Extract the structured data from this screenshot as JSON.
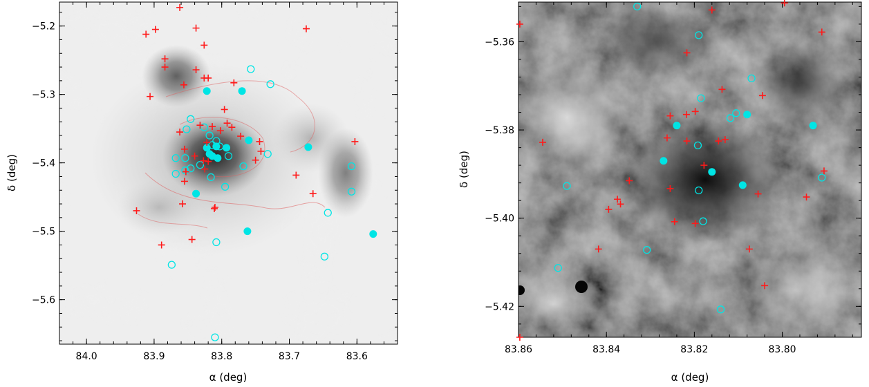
{
  "chart_data": [
    {
      "type": "scatter",
      "panel": "left",
      "background": "inverted grayscale image",
      "xlabel": "α (deg)",
      "ylabel": "δ (deg)",
      "xlim": [
        84.04,
        83.54
      ],
      "ylim": [
        -5.665,
        -5.165
      ],
      "x_ticks": [
        84.0,
        83.9,
        83.8,
        83.7,
        83.6
      ],
      "x_tick_labels": [
        "84.0",
        "83.9",
        "83.8",
        "83.7",
        "83.6"
      ],
      "y_ticks": [
        -5.2,
        -5.3,
        -5.4,
        -5.5,
        -5.6
      ],
      "y_tick_labels": [
        "−5.2",
        "−5.3",
        "−5.4",
        "−5.5",
        "−5.6"
      ],
      "colors": {
        "filled": "#00e5e5",
        "open": "#00e5e5",
        "plus": "#ff1a1a",
        "contour": "#e06060"
      },
      "series": [
        {
          "marker": "filled-circle",
          "points": [
            [
              83.822,
              -5.295
            ],
            [
              83.77,
              -5.295
            ],
            [
              83.822,
              -5.378
            ],
            [
              83.808,
              -5.376
            ],
            [
              83.793,
              -5.378
            ],
            [
              83.76,
              -5.367
            ],
            [
              83.814,
              -5.39
            ],
            [
              83.806,
              -5.393
            ],
            [
              83.818,
              -5.387
            ],
            [
              83.672,
              -5.377
            ],
            [
              83.838,
              -5.445
            ],
            [
              83.762,
              -5.5
            ],
            [
              83.576,
              -5.504
            ]
          ]
        },
        {
          "marker": "open-circle",
          "points": [
            [
              83.757,
              -5.263
            ],
            [
              83.728,
              -5.285
            ],
            [
              83.846,
              -5.336
            ],
            [
              83.852,
              -5.351
            ],
            [
              83.826,
              -5.348
            ],
            [
              83.818,
              -5.36
            ],
            [
              83.808,
              -5.368
            ],
            [
              83.814,
              -5.374
            ],
            [
              83.803,
              -5.376
            ],
            [
              83.79,
              -5.39
            ],
            [
              83.868,
              -5.393
            ],
            [
              83.854,
              -5.393
            ],
            [
              83.846,
              -5.408
            ],
            [
              83.832,
              -5.403
            ],
            [
              83.868,
              -5.416
            ],
            [
              83.854,
              -5.411
            ],
            [
              83.816,
              -5.421
            ],
            [
              83.795,
              -5.435
            ],
            [
              83.768,
              -5.405
            ],
            [
              83.732,
              -5.387
            ],
            [
              83.608,
              -5.405
            ],
            [
              83.608,
              -5.442
            ],
            [
              83.643,
              -5.473
            ],
            [
              83.808,
              -5.516
            ],
            [
              83.648,
              -5.537
            ],
            [
              83.874,
              -5.549
            ],
            [
              83.81,
              -5.655
            ]
          ]
        },
        {
          "marker": "plus",
          "points": [
            [
              83.862,
              -5.173
            ],
            [
              83.912,
              -5.212
            ],
            [
              83.898,
              -5.205
            ],
            [
              83.838,
              -5.203
            ],
            [
              83.675,
              -5.204
            ],
            [
              83.826,
              -5.228
            ],
            [
              83.884,
              -5.248
            ],
            [
              83.884,
              -5.26
            ],
            [
              83.838,
              -5.264
            ],
            [
              83.82,
              -5.276
            ],
            [
              83.826,
              -5.276
            ],
            [
              83.856,
              -5.286
            ],
            [
              83.782,
              -5.283
            ],
            [
              83.906,
              -5.303
            ],
            [
              83.796,
              -5.322
            ],
            [
              83.862,
              -5.355
            ],
            [
              83.832,
              -5.345
            ],
            [
              83.814,
              -5.347
            ],
            [
              83.792,
              -5.342
            ],
            [
              83.785,
              -5.348
            ],
            [
              83.822,
              -5.37
            ],
            [
              83.772,
              -5.361
            ],
            [
              83.744,
              -5.369
            ],
            [
              83.802,
              -5.353
            ],
            [
              83.855,
              -5.38
            ],
            [
              83.742,
              -5.383
            ],
            [
              83.827,
              -5.397
            ],
            [
              83.82,
              -5.398
            ],
            [
              83.84,
              -5.39
            ],
            [
              83.75,
              -5.396
            ],
            [
              83.853,
              -5.413
            ],
            [
              83.825,
              -5.409
            ],
            [
              83.855,
              -5.427
            ],
            [
              83.69,
              -5.418
            ],
            [
              83.665,
              -5.445
            ],
            [
              83.858,
              -5.46
            ],
            [
              83.81,
              -5.465
            ],
            [
              83.811,
              -5.467
            ],
            [
              83.926,
              -5.47
            ],
            [
              83.603,
              -5.369
            ],
            [
              83.889,
              -5.52
            ],
            [
              83.844,
              -5.512
            ]
          ]
        }
      ]
    },
    {
      "type": "scatter",
      "panel": "right",
      "background": "grayscale image",
      "xlabel": "α (deg)",
      "ylabel": "δ (deg)",
      "xlim": [
        83.86,
        83.782
      ],
      "ylim": [
        -5.427,
        -5.351
      ],
      "x_ticks": [
        83.86,
        83.84,
        83.82,
        83.8
      ],
      "x_tick_labels": [
        "83.86",
        "83.84",
        "83.82",
        "83.80"
      ],
      "y_ticks": [
        -5.36,
        -5.38,
        -5.4,
        -5.42
      ],
      "y_tick_labels": [
        "−5.36",
        "−5.38",
        "−5.40",
        "−5.42"
      ],
      "colors": {
        "filled": "#00e5e5",
        "open": "#00e5e5",
        "plus": "#ff1a1a"
      },
      "series": [
        {
          "marker": "filled-circle",
          "points": [
            [
              83.824,
              -5.379
            ],
            [
              83.827,
              -5.387
            ],
            [
              83.816,
              -5.3895
            ],
            [
              83.809,
              -5.3925
            ],
            [
              83.808,
              -5.3765
            ],
            [
              83.793,
              -5.379
            ]
          ]
        },
        {
          "marker": "open-circle",
          "points": [
            [
              83.833,
              -5.352
            ],
            [
              83.819,
              -5.3585
            ],
            [
              83.807,
              -5.3683
            ],
            [
              83.8185,
              -5.3728
            ],
            [
              83.8105,
              -5.3762
            ],
            [
              83.8118,
              -5.3773
            ],
            [
              83.8192,
              -5.3835
            ],
            [
              83.819,
              -5.3937
            ],
            [
              83.849,
              -5.3927
            ],
            [
              83.818,
              -5.4007
            ],
            [
              83.8308,
              -5.4072
            ],
            [
              83.851,
              -5.4113
            ],
            [
              83.814,
              -5.4207
            ],
            [
              83.791,
              -5.3908
            ]
          ]
        },
        {
          "marker": "plus",
          "points": [
            [
              83.816,
              -5.3528
            ],
            [
              83.7995,
              -5.3512
            ],
            [
              83.791,
              -5.3578
            ],
            [
              83.8597,
              -5.356
            ],
            [
              83.8217,
              -5.3625
            ],
            [
              83.8137,
              -5.3708
            ],
            [
              83.8045,
              -5.3722
            ],
            [
              83.8262,
              -5.3818
            ],
            [
              83.8198,
              -5.3758
            ],
            [
              83.8218,
              -5.3765
            ],
            [
              83.8255,
              -5.3768
            ],
            [
              83.8217,
              -5.3825
            ],
            [
              83.8145,
              -5.3825
            ],
            [
              83.813,
              -5.3822
            ],
            [
              83.8178,
              -5.388
            ],
            [
              83.8545,
              -5.3828
            ],
            [
              83.8348,
              -5.3915
            ],
            [
              83.8255,
              -5.3933
            ],
            [
              83.8375,
              -5.3957
            ],
            [
              83.8368,
              -5.3968
            ],
            [
              83.8395,
              -5.398
            ],
            [
              83.8245,
              -5.4008
            ],
            [
              83.8198,
              -5.4012
            ],
            [
              83.8055,
              -5.3945
            ],
            [
              83.7945,
              -5.3952
            ],
            [
              83.7905,
              -5.3893
            ],
            [
              83.8418,
              -5.407
            ],
            [
              83.8075,
              -5.407
            ],
            [
              83.804,
              -5.4153
            ],
            [
              83.8597,
              -5.427
            ]
          ]
        }
      ]
    }
  ]
}
